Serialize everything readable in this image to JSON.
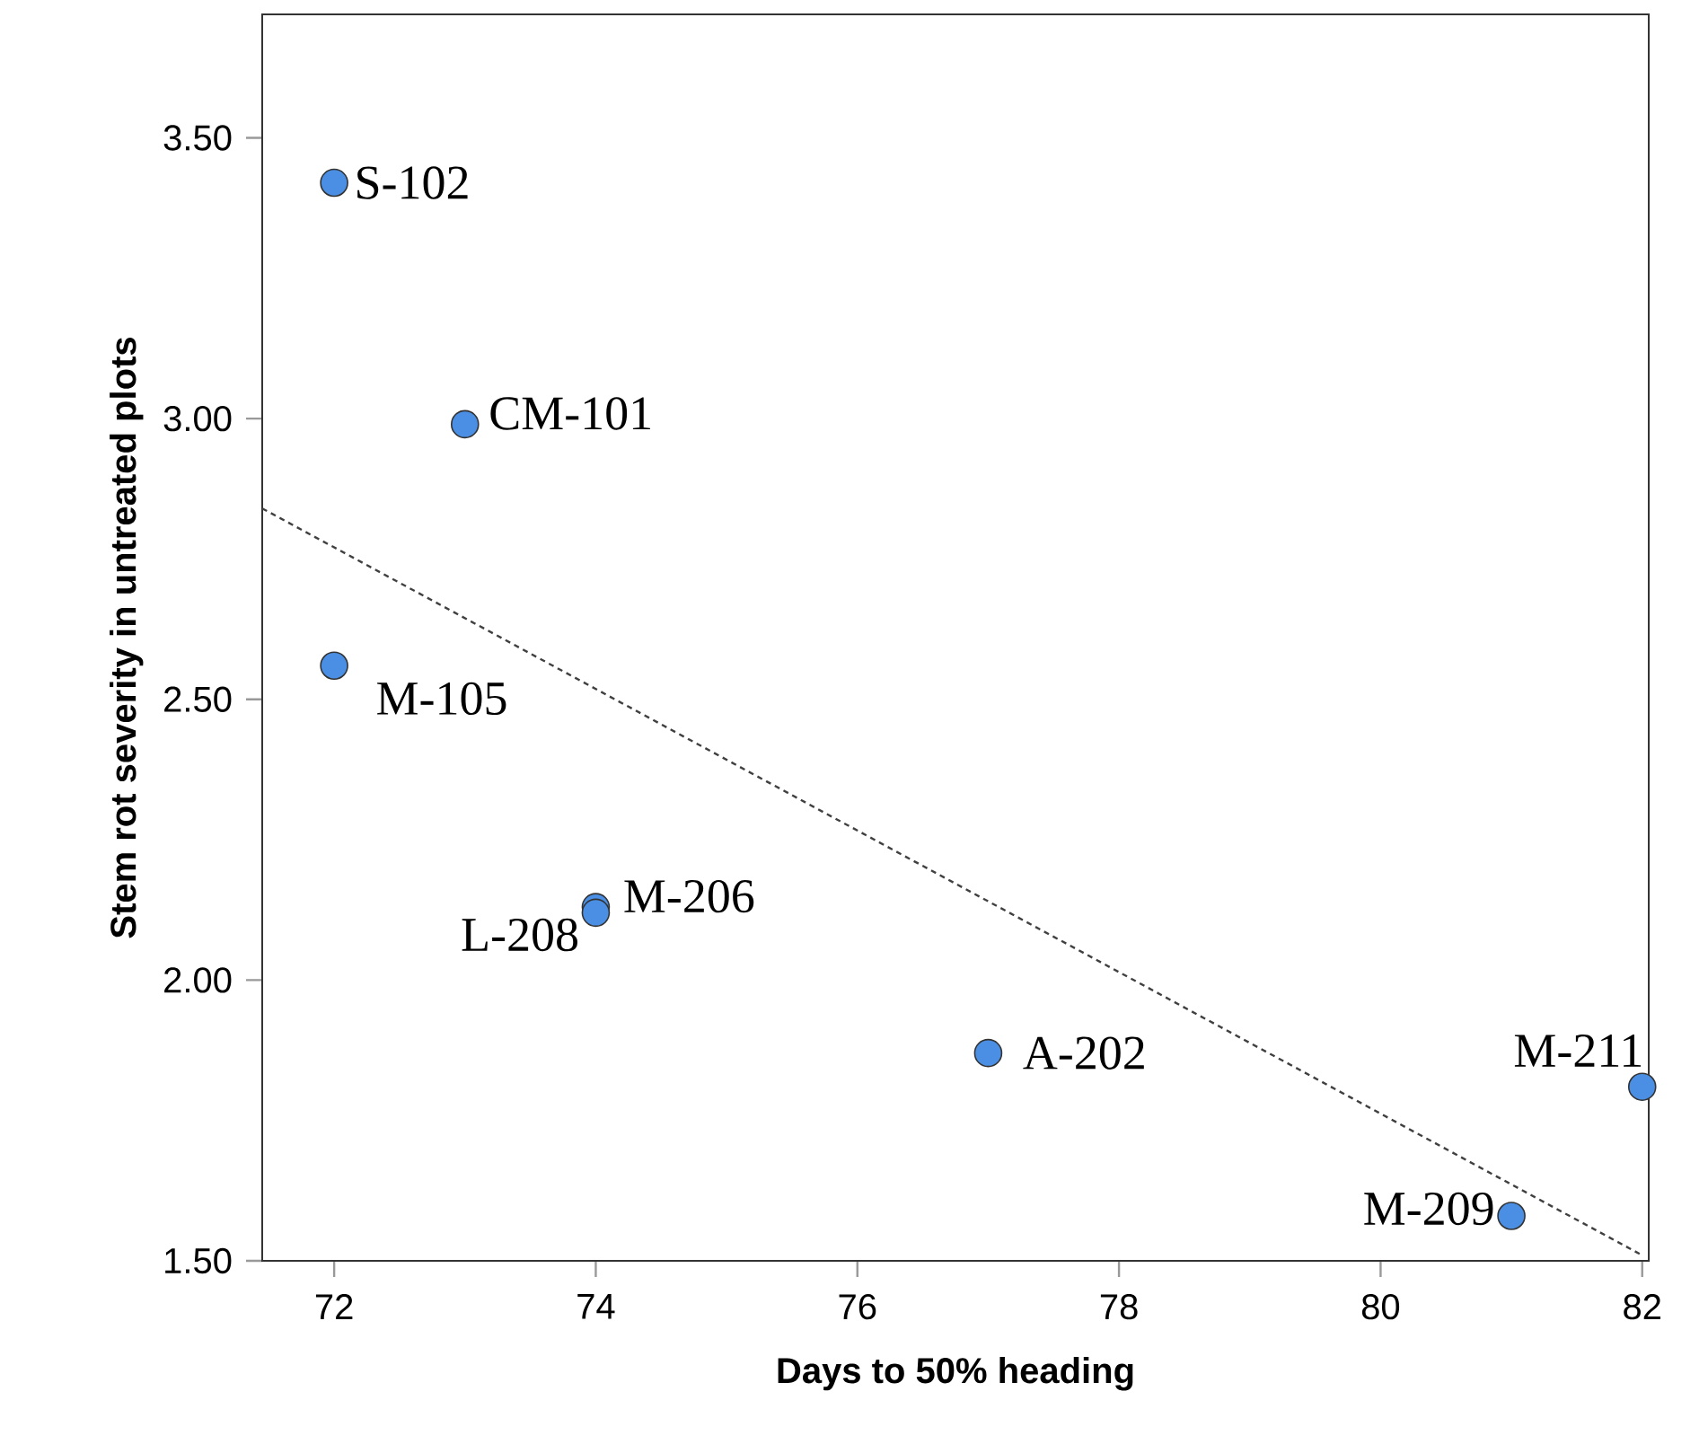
{
  "chart_data": {
    "type": "scatter",
    "xlabel": "Days to 50% heading",
    "ylabel": "Stem rot severity in untreated plots",
    "xlim": [
      71.45,
      82.05
    ],
    "ylim": [
      1.5,
      3.72
    ],
    "xticks": [
      72,
      74,
      76,
      78,
      80,
      82
    ],
    "yticks": [
      {
        "value": 1.5,
        "label": "1.50"
      },
      {
        "value": 2.0,
        "label": "2.00"
      },
      {
        "value": 2.5,
        "label": "2.50"
      },
      {
        "value": 3.0,
        "label": "3.00"
      },
      {
        "value": 3.5,
        "label": "3.50"
      }
    ],
    "marker": "circle",
    "series": [
      {
        "color": "#4a8fe3",
        "x": [
          72,
          73,
          72,
          74,
          74,
          77,
          82,
          81
        ],
        "values": [
          3.42,
          2.99,
          2.56,
          2.13,
          2.12,
          1.87,
          1.81,
          1.58
        ]
      },
      {
        "type": "line",
        "color": "#404040",
        "line_style": "dashed",
        "marker": "none",
        "x": [
          71.45,
          82
        ],
        "values": [
          2.84,
          1.51
        ]
      }
    ],
    "annotations": [
      {
        "text": "S-102",
        "x": 72,
        "y": 3.42
      },
      {
        "text": "CM-101",
        "x": 73,
        "y": 2.99
      },
      {
        "text": "M-105",
        "x": 72,
        "y": 2.56
      },
      {
        "text": "M-206",
        "x": 74,
        "y": 2.13
      },
      {
        "text": "L-208",
        "x": 74,
        "y": 2.12
      },
      {
        "text": "A-202",
        "x": 77,
        "y": 1.87
      },
      {
        "text": "M-211",
        "x": 82,
        "y": 1.81
      },
      {
        "text": "M-209",
        "x": 81,
        "y": 1.58
      }
    ]
  }
}
